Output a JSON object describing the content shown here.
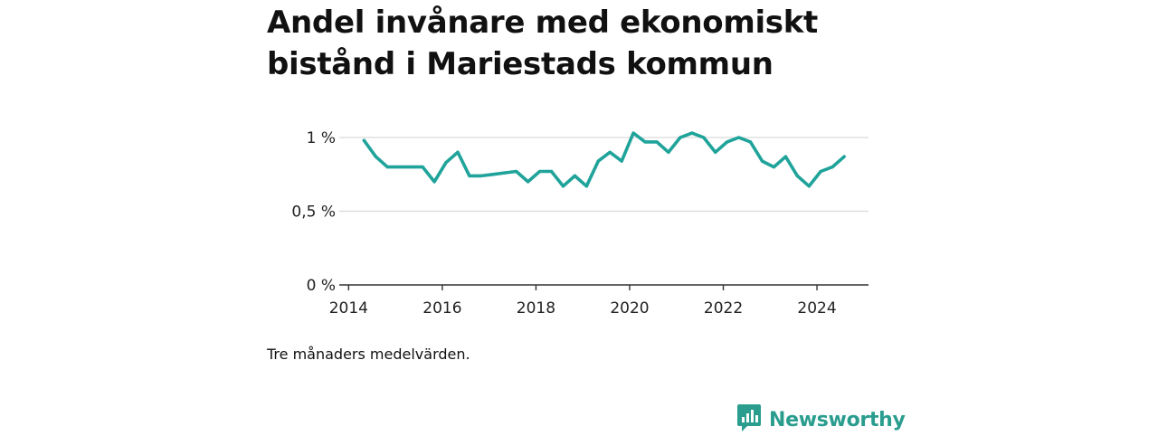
{
  "title": "Andel invånare med ekonomiskt bistånd i Mariestads kommun",
  "note": "Tre månaders medelvärden.",
  "brand": {
    "name": "Newsworthy",
    "icon": "bar-chart-speech-bubble-icon"
  },
  "colors": {
    "line": "#1fa39a",
    "brand": "#2a9d8f",
    "grid": "#d9d9d9",
    "axis": "#333333"
  },
  "chart_data": {
    "type": "line",
    "title": "Andel invånare med ekonomiskt bistånd i Mariestads kommun",
    "xlabel": "",
    "ylabel": "",
    "xlim": [
      2013.8,
      2025.1
    ],
    "ylim": [
      0,
      1.1
    ],
    "y_ticks": [
      {
        "value": 0,
        "label": "0 %"
      },
      {
        "value": 0.5,
        "label": "0,5 %"
      },
      {
        "value": 1,
        "label": "1 %"
      }
    ],
    "x_ticks": [
      {
        "value": 2014,
        "label": "2014"
      },
      {
        "value": 2016,
        "label": "2016"
      },
      {
        "value": 2018,
        "label": "2018"
      },
      {
        "value": 2020,
        "label": "2020"
      },
      {
        "value": 2022,
        "label": "2022"
      },
      {
        "value": 2024,
        "label": "2024"
      }
    ],
    "grid": true,
    "series": [
      {
        "points": [
          [
            2014.33,
            0.98
          ],
          [
            2014.58,
            0.87
          ],
          [
            2014.83,
            0.8
          ],
          [
            2015.08,
            0.8
          ],
          [
            2015.33,
            0.8
          ],
          [
            2015.58,
            0.8
          ],
          [
            2015.83,
            0.7
          ],
          [
            2016.08,
            0.83
          ],
          [
            2016.33,
            0.9
          ],
          [
            2016.58,
            0.74
          ],
          [
            2016.83,
            0.74
          ],
          [
            2017.08,
            0.75
          ],
          [
            2017.33,
            0.76
          ],
          [
            2017.58,
            0.77
          ],
          [
            2017.83,
            0.7
          ],
          [
            2018.08,
            0.77
          ],
          [
            2018.33,
            0.77
          ],
          [
            2018.58,
            0.67
          ],
          [
            2018.83,
            0.74
          ],
          [
            2019.08,
            0.67
          ],
          [
            2019.33,
            0.84
          ],
          [
            2019.58,
            0.9
          ],
          [
            2019.83,
            0.84
          ],
          [
            2020.08,
            1.03
          ],
          [
            2020.33,
            0.97
          ],
          [
            2020.58,
            0.97
          ],
          [
            2020.83,
            0.9
          ],
          [
            2021.08,
            1.0
          ],
          [
            2021.33,
            1.03
          ],
          [
            2021.58,
            1.0
          ],
          [
            2021.83,
            0.9
          ],
          [
            2022.08,
            0.97
          ],
          [
            2022.33,
            1.0
          ],
          [
            2022.58,
            0.97
          ],
          [
            2022.83,
            0.84
          ],
          [
            2023.08,
            0.8
          ],
          [
            2023.33,
            0.87
          ],
          [
            2023.58,
            0.74
          ],
          [
            2023.83,
            0.67
          ],
          [
            2024.08,
            0.77
          ],
          [
            2024.33,
            0.8
          ],
          [
            2024.58,
            0.87
          ]
        ]
      }
    ]
  }
}
